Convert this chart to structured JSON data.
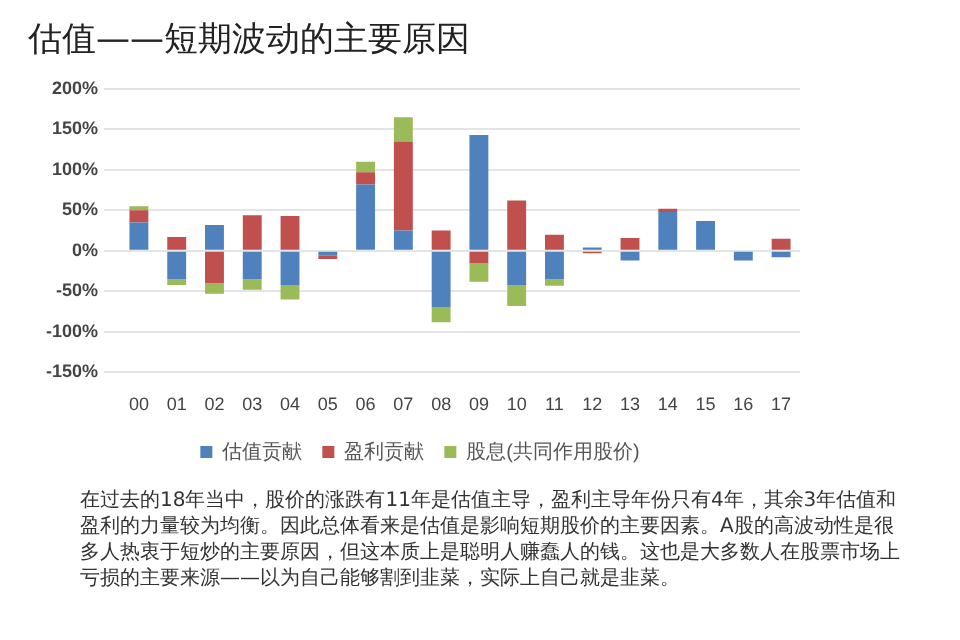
{
  "chart_data": {
    "type": "bar",
    "title": "估值——短期波动的主要原因",
    "categories": [
      "00",
      "01",
      "02",
      "03",
      "04",
      "05",
      "06",
      "07",
      "08",
      "09",
      "10",
      "11",
      "12",
      "13",
      "14",
      "15",
      "16",
      "17"
    ],
    "stacked": true,
    "series": [
      {
        "name": "估值贡献",
        "color": "#4f81bd",
        "values": [
          35,
          -35,
          32,
          -35,
          -42,
          -6,
          82,
          25,
          -70,
          143,
          -42,
          -35,
          4,
          -12,
          48,
          37,
          -12,
          -8
        ]
      },
      {
        "name": "盈利贡献",
        "color": "#c0504d",
        "values": [
          15,
          17,
          -40,
          44,
          43,
          -4,
          15,
          110,
          25,
          -15,
          62,
          20,
          -3,
          16,
          4,
          null,
          null,
          15
        ]
      },
      {
        "name": "股息(共同作用股价)",
        "color": "#9bbb59",
        "values": [
          5,
          -7,
          -13,
          -13,
          -18,
          null,
          13,
          30,
          -18,
          -23,
          -26,
          -8,
          null,
          null,
          null,
          null,
          null,
          null
        ]
      }
    ],
    "ylim": [
      -150,
      200
    ],
    "yticks": [
      {
        "value": -150,
        "label": "-150%"
      },
      {
        "value": -100,
        "label": "-100%"
      },
      {
        "value": -50,
        "label": "-50%"
      },
      {
        "value": 0,
        "label": "0%"
      },
      {
        "value": 50,
        "label": "50%"
      },
      {
        "value": 100,
        "label": "100%"
      },
      {
        "value": 150,
        "label": "150%"
      },
      {
        "value": 200,
        "label": "200%"
      }
    ],
    "grid": "y",
    "legend": "bottom",
    "annotations": [
      "在过去的18年当中，股价的涨跌有11年是估值主导，盈利主导年份只有4年，其余3年估值和盈利的力量较为均衡。因此总体看来是估值是影响短期股价的主要因素。A股的高波动性是很多人热衷于短炒的主要原因，但这本质上是聪明人赚蠢人的钱。这也是大多数人在股票市场上亏损的主要来源——以为自己能够割到韭菜，实际上自己就是韭菜。"
    ]
  }
}
